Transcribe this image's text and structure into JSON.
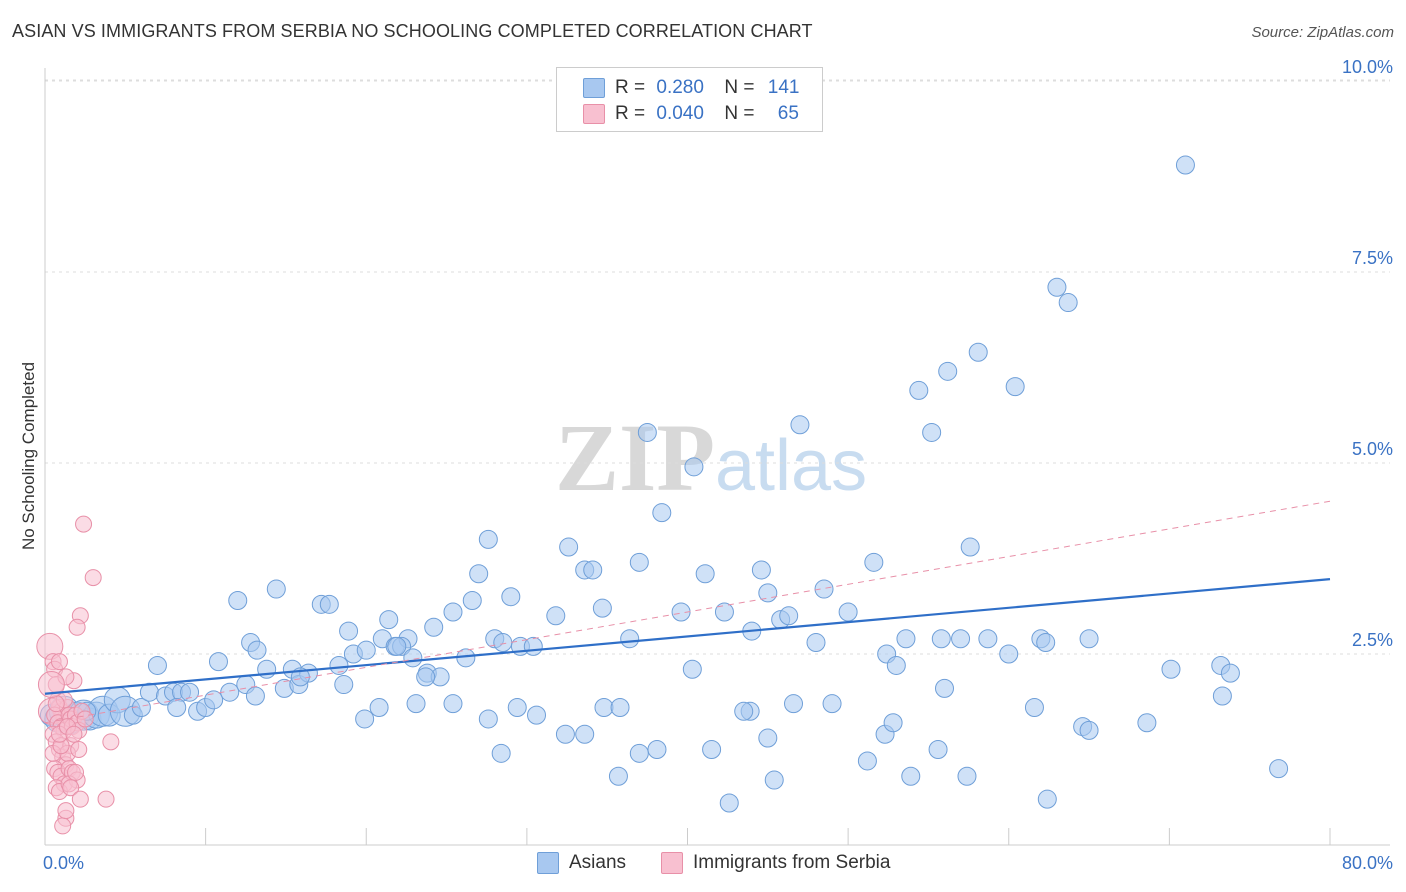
{
  "title": "ASIAN VS IMMIGRANTS FROM SERBIA NO SCHOOLING COMPLETED CORRELATION CHART",
  "source": "Source: ZipAtlas.com",
  "watermark": {
    "zip": "ZIP",
    "atlas": "atlas"
  },
  "legend": {
    "rows": [
      {
        "r_label": "R =",
        "r_value": "0.280",
        "n_label": "N =",
        "n_value": "141",
        "color": "#a8c8f0",
        "border": "#6f9fd8"
      },
      {
        "r_label": "R =",
        "r_value": "0.040",
        "n_label": "N =",
        "n_value": "65",
        "color": "#f8c0d0",
        "border": "#e890a8"
      }
    ]
  },
  "bottom_legend": [
    {
      "label": "Asians",
      "color": "#a8c8f0",
      "border": "#6f9fd8"
    },
    {
      "label": "Immigrants from Serbia",
      "color": "#f8c0d0",
      "border": "#e890a8"
    }
  ],
  "chart_data": {
    "type": "scatter",
    "title": "ASIAN VS IMMIGRANTS FROM SERBIA NO SCHOOLING COMPLETED CORRELATION CHART",
    "xlabel": "",
    "ylabel": "No Schooling Completed",
    "xlim": [
      0,
      80
    ],
    "ylim": [
      0,
      10.5
    ],
    "x_tick_labels": [
      "0.0%",
      "80.0%"
    ],
    "y_ticks": [
      2.5,
      5.0,
      7.5,
      10.0
    ],
    "y_tick_labels": [
      "2.5%",
      "5.0%",
      "7.5%",
      "10.0%"
    ],
    "grid": true,
    "legend_position": "top-center",
    "series": [
      {
        "name": "Asians",
        "color": "#6f9fd8",
        "fill": "#a8c8f0",
        "trend": {
          "x": [
            0,
            80
          ],
          "y": [
            1.98,
            3.48
          ],
          "color": "#2f6fc8",
          "style": "solid"
        },
        "points": [
          [
            0.4,
            1.7
          ],
          [
            0.8,
            1.65
          ],
          [
            1.2,
            1.75
          ],
          [
            1.6,
            1.6
          ],
          [
            2.0,
            1.7
          ],
          [
            2.4,
            1.7
          ],
          [
            2.8,
            1.65
          ],
          [
            3.2,
            1.7
          ],
          [
            3.6,
            1.75
          ],
          [
            4.0,
            1.7
          ],
          [
            4.5,
            1.9
          ],
          [
            5.0,
            1.75
          ],
          [
            5.5,
            1.7
          ],
          [
            6.0,
            1.8
          ],
          [
            6.5,
            2.0
          ],
          [
            7.0,
            2.35
          ],
          [
            7.5,
            1.95
          ],
          [
            8.0,
            2.0
          ],
          [
            8.5,
            2.0
          ],
          [
            9.0,
            2.0
          ],
          [
            9.5,
            1.75
          ],
          [
            10.0,
            1.8
          ],
          [
            10.5,
            1.9
          ],
          [
            10.8,
            2.4
          ],
          [
            11.5,
            2.0
          ],
          [
            12.0,
            3.2
          ],
          [
            12.5,
            2.1
          ],
          [
            12.8,
            2.65
          ],
          [
            13.2,
            2.55
          ],
          [
            13.8,
            2.3
          ],
          [
            14.4,
            3.35
          ],
          [
            14.9,
            2.05
          ],
          [
            15.4,
            2.3
          ],
          [
            15.8,
            2.1
          ],
          [
            16.4,
            2.25
          ],
          [
            17.2,
            3.15
          ],
          [
            17.7,
            3.15
          ],
          [
            18.6,
            2.1
          ],
          [
            18.9,
            2.8
          ],
          [
            18.3,
            2.35
          ],
          [
            19.2,
            2.5
          ],
          [
            20.0,
            2.55
          ],
          [
            21.0,
            2.7
          ],
          [
            21.4,
            2.95
          ],
          [
            21.8,
            2.6
          ],
          [
            22.6,
            2.7
          ],
          [
            22.2,
            2.6
          ],
          [
            22.9,
            2.45
          ],
          [
            23.8,
            2.25
          ],
          [
            24.2,
            2.85
          ],
          [
            24.6,
            2.2
          ],
          [
            25.4,
            3.05
          ],
          [
            26.2,
            2.45
          ],
          [
            26.6,
            3.2
          ],
          [
            27.0,
            3.55
          ],
          [
            27.6,
            4.0
          ],
          [
            28.0,
            2.7
          ],
          [
            28.5,
            2.65
          ],
          [
            29.0,
            3.25
          ],
          [
            29.6,
            2.6
          ],
          [
            30.4,
            2.6
          ],
          [
            31.8,
            3.0
          ],
          [
            32.6,
            3.9
          ],
          [
            33.6,
            3.6
          ],
          [
            34.1,
            3.6
          ],
          [
            34.7,
            3.1
          ],
          [
            36.4,
            2.7
          ],
          [
            37.0,
            3.7
          ],
          [
            37.5,
            5.4
          ],
          [
            38.4,
            4.35
          ],
          [
            39.6,
            3.05
          ],
          [
            40.4,
            4.95
          ],
          [
            41.1,
            3.55
          ],
          [
            42.3,
            3.05
          ],
          [
            44.0,
            2.8
          ],
          [
            44.6,
            3.6
          ],
          [
            45.0,
            3.3
          ],
          [
            45.8,
            2.95
          ],
          [
            46.3,
            3.0
          ],
          [
            47.0,
            5.5
          ],
          [
            48.5,
            3.35
          ],
          [
            48.0,
            2.65
          ],
          [
            50.0,
            3.05
          ],
          [
            51.6,
            3.7
          ],
          [
            52.4,
            2.5
          ],
          [
            53.0,
            2.35
          ],
          [
            53.6,
            2.7
          ],
          [
            54.4,
            5.95
          ],
          [
            55.2,
            5.4
          ],
          [
            55.8,
            2.7
          ],
          [
            56.2,
            6.2
          ],
          [
            57.0,
            2.7
          ],
          [
            57.6,
            3.9
          ],
          [
            58.7,
            2.7
          ],
          [
            58.1,
            6.45
          ],
          [
            60.0,
            2.5
          ],
          [
            60.4,
            6.0
          ],
          [
            62.0,
            2.7
          ],
          [
            62.3,
            2.65
          ],
          [
            63.0,
            7.3
          ],
          [
            63.7,
            7.1
          ],
          [
            65.0,
            2.7
          ],
          [
            70.1,
            2.3
          ],
          [
            71.0,
            8.9
          ],
          [
            73.2,
            2.35
          ],
          [
            73.8,
            2.25
          ],
          [
            28.4,
            1.2
          ],
          [
            20.8,
            1.8
          ],
          [
            27.6,
            1.65
          ],
          [
            30.6,
            1.7
          ],
          [
            32.4,
            1.45
          ],
          [
            33.6,
            1.45
          ],
          [
            34.8,
            1.8
          ],
          [
            35.7,
            0.9
          ],
          [
            35.8,
            1.8
          ],
          [
            37.0,
            1.2
          ],
          [
            38.1,
            1.25
          ],
          [
            40.3,
            2.3
          ],
          [
            41.5,
            1.25
          ],
          [
            42.6,
            0.55
          ],
          [
            43.9,
            1.75
          ],
          [
            45.0,
            1.4
          ],
          [
            45.4,
            0.85
          ],
          [
            46.6,
            1.85
          ],
          [
            49.0,
            1.85
          ],
          [
            51.2,
            1.1
          ],
          [
            52.3,
            1.45
          ],
          [
            52.8,
            1.6
          ],
          [
            53.9,
            0.9
          ],
          [
            55.6,
            1.25
          ],
          [
            56.0,
            2.05
          ],
          [
            57.4,
            0.9
          ],
          [
            61.6,
            1.8
          ],
          [
            62.4,
            0.6
          ],
          [
            64.6,
            1.55
          ],
          [
            65.0,
            1.5
          ],
          [
            68.6,
            1.6
          ],
          [
            76.8,
            1.0
          ],
          [
            73.3,
            1.95
          ],
          [
            25.4,
            1.85
          ],
          [
            23.1,
            1.85
          ],
          [
            23.7,
            2.2
          ],
          [
            29.4,
            1.8
          ],
          [
            19.9,
            1.65
          ],
          [
            21.9,
            2.6
          ],
          [
            15.9,
            2.2
          ],
          [
            13.1,
            1.95
          ],
          [
            8.2,
            1.8
          ],
          [
            2.6,
            1.75
          ],
          [
            43.5,
            1.75
          ]
        ]
      },
      {
        "name": "Immigrants from Serbia",
        "color": "#e890a8",
        "fill": "#f8c0d0",
        "trend": {
          "x": [
            0,
            80
          ],
          "y": [
            1.6,
            4.5
          ],
          "color": "#e890a8",
          "style": "dashed"
        },
        "points": [
          [
            0.3,
            2.6
          ],
          [
            0.5,
            2.4
          ],
          [
            0.6,
            2.3
          ],
          [
            0.7,
            2.1
          ],
          [
            0.8,
            1.9
          ],
          [
            0.9,
            1.8
          ],
          [
            1.0,
            1.75
          ],
          [
            1.1,
            1.7
          ],
          [
            1.2,
            1.65
          ],
          [
            1.3,
            1.6
          ],
          [
            0.4,
            1.75
          ],
          [
            0.6,
            1.7
          ],
          [
            0.8,
            1.6
          ],
          [
            1.0,
            1.55
          ],
          [
            1.2,
            1.5
          ],
          [
            0.5,
            1.45
          ],
          [
            0.7,
            1.35
          ],
          [
            0.9,
            1.25
          ],
          [
            1.1,
            1.15
          ],
          [
            1.3,
            1.05
          ],
          [
            0.6,
            1.0
          ],
          [
            0.8,
            0.95
          ],
          [
            1.0,
            0.9
          ],
          [
            1.2,
            0.8
          ],
          [
            0.7,
            0.75
          ],
          [
            0.9,
            0.7
          ],
          [
            1.4,
            1.8
          ],
          [
            1.5,
            1.7
          ],
          [
            1.6,
            1.65
          ],
          [
            1.7,
            1.55
          ],
          [
            1.8,
            2.15
          ],
          [
            1.9,
            1.7
          ],
          [
            2.0,
            1.6
          ],
          [
            2.1,
            1.5
          ],
          [
            1.6,
            1.3
          ],
          [
            1.4,
            1.2
          ],
          [
            1.5,
            1.0
          ],
          [
            1.7,
            0.95
          ],
          [
            2.0,
            0.85
          ],
          [
            1.3,
            0.35
          ],
          [
            1.1,
            0.25
          ],
          [
            1.3,
            0.45
          ],
          [
            2.1,
            1.25
          ],
          [
            1.5,
            0.8
          ],
          [
            1.9,
            0.95
          ],
          [
            2.4,
            4.2
          ],
          [
            2.2,
            3.0
          ],
          [
            2.0,
            2.85
          ],
          [
            3.0,
            3.5
          ],
          [
            1.3,
            2.2
          ],
          [
            0.9,
            2.4
          ],
          [
            0.5,
            1.2
          ],
          [
            1.0,
            1.3
          ],
          [
            1.2,
            1.9
          ],
          [
            0.7,
            1.85
          ],
          [
            2.3,
            1.75
          ],
          [
            2.5,
            1.65
          ],
          [
            0.4,
            2.1
          ],
          [
            1.6,
            0.75
          ],
          [
            2.2,
            0.6
          ],
          [
            3.8,
            0.6
          ],
          [
            4.1,
            1.35
          ],
          [
            0.9,
            1.45
          ],
          [
            1.4,
            1.55
          ],
          [
            1.8,
            1.45
          ]
        ]
      }
    ]
  }
}
